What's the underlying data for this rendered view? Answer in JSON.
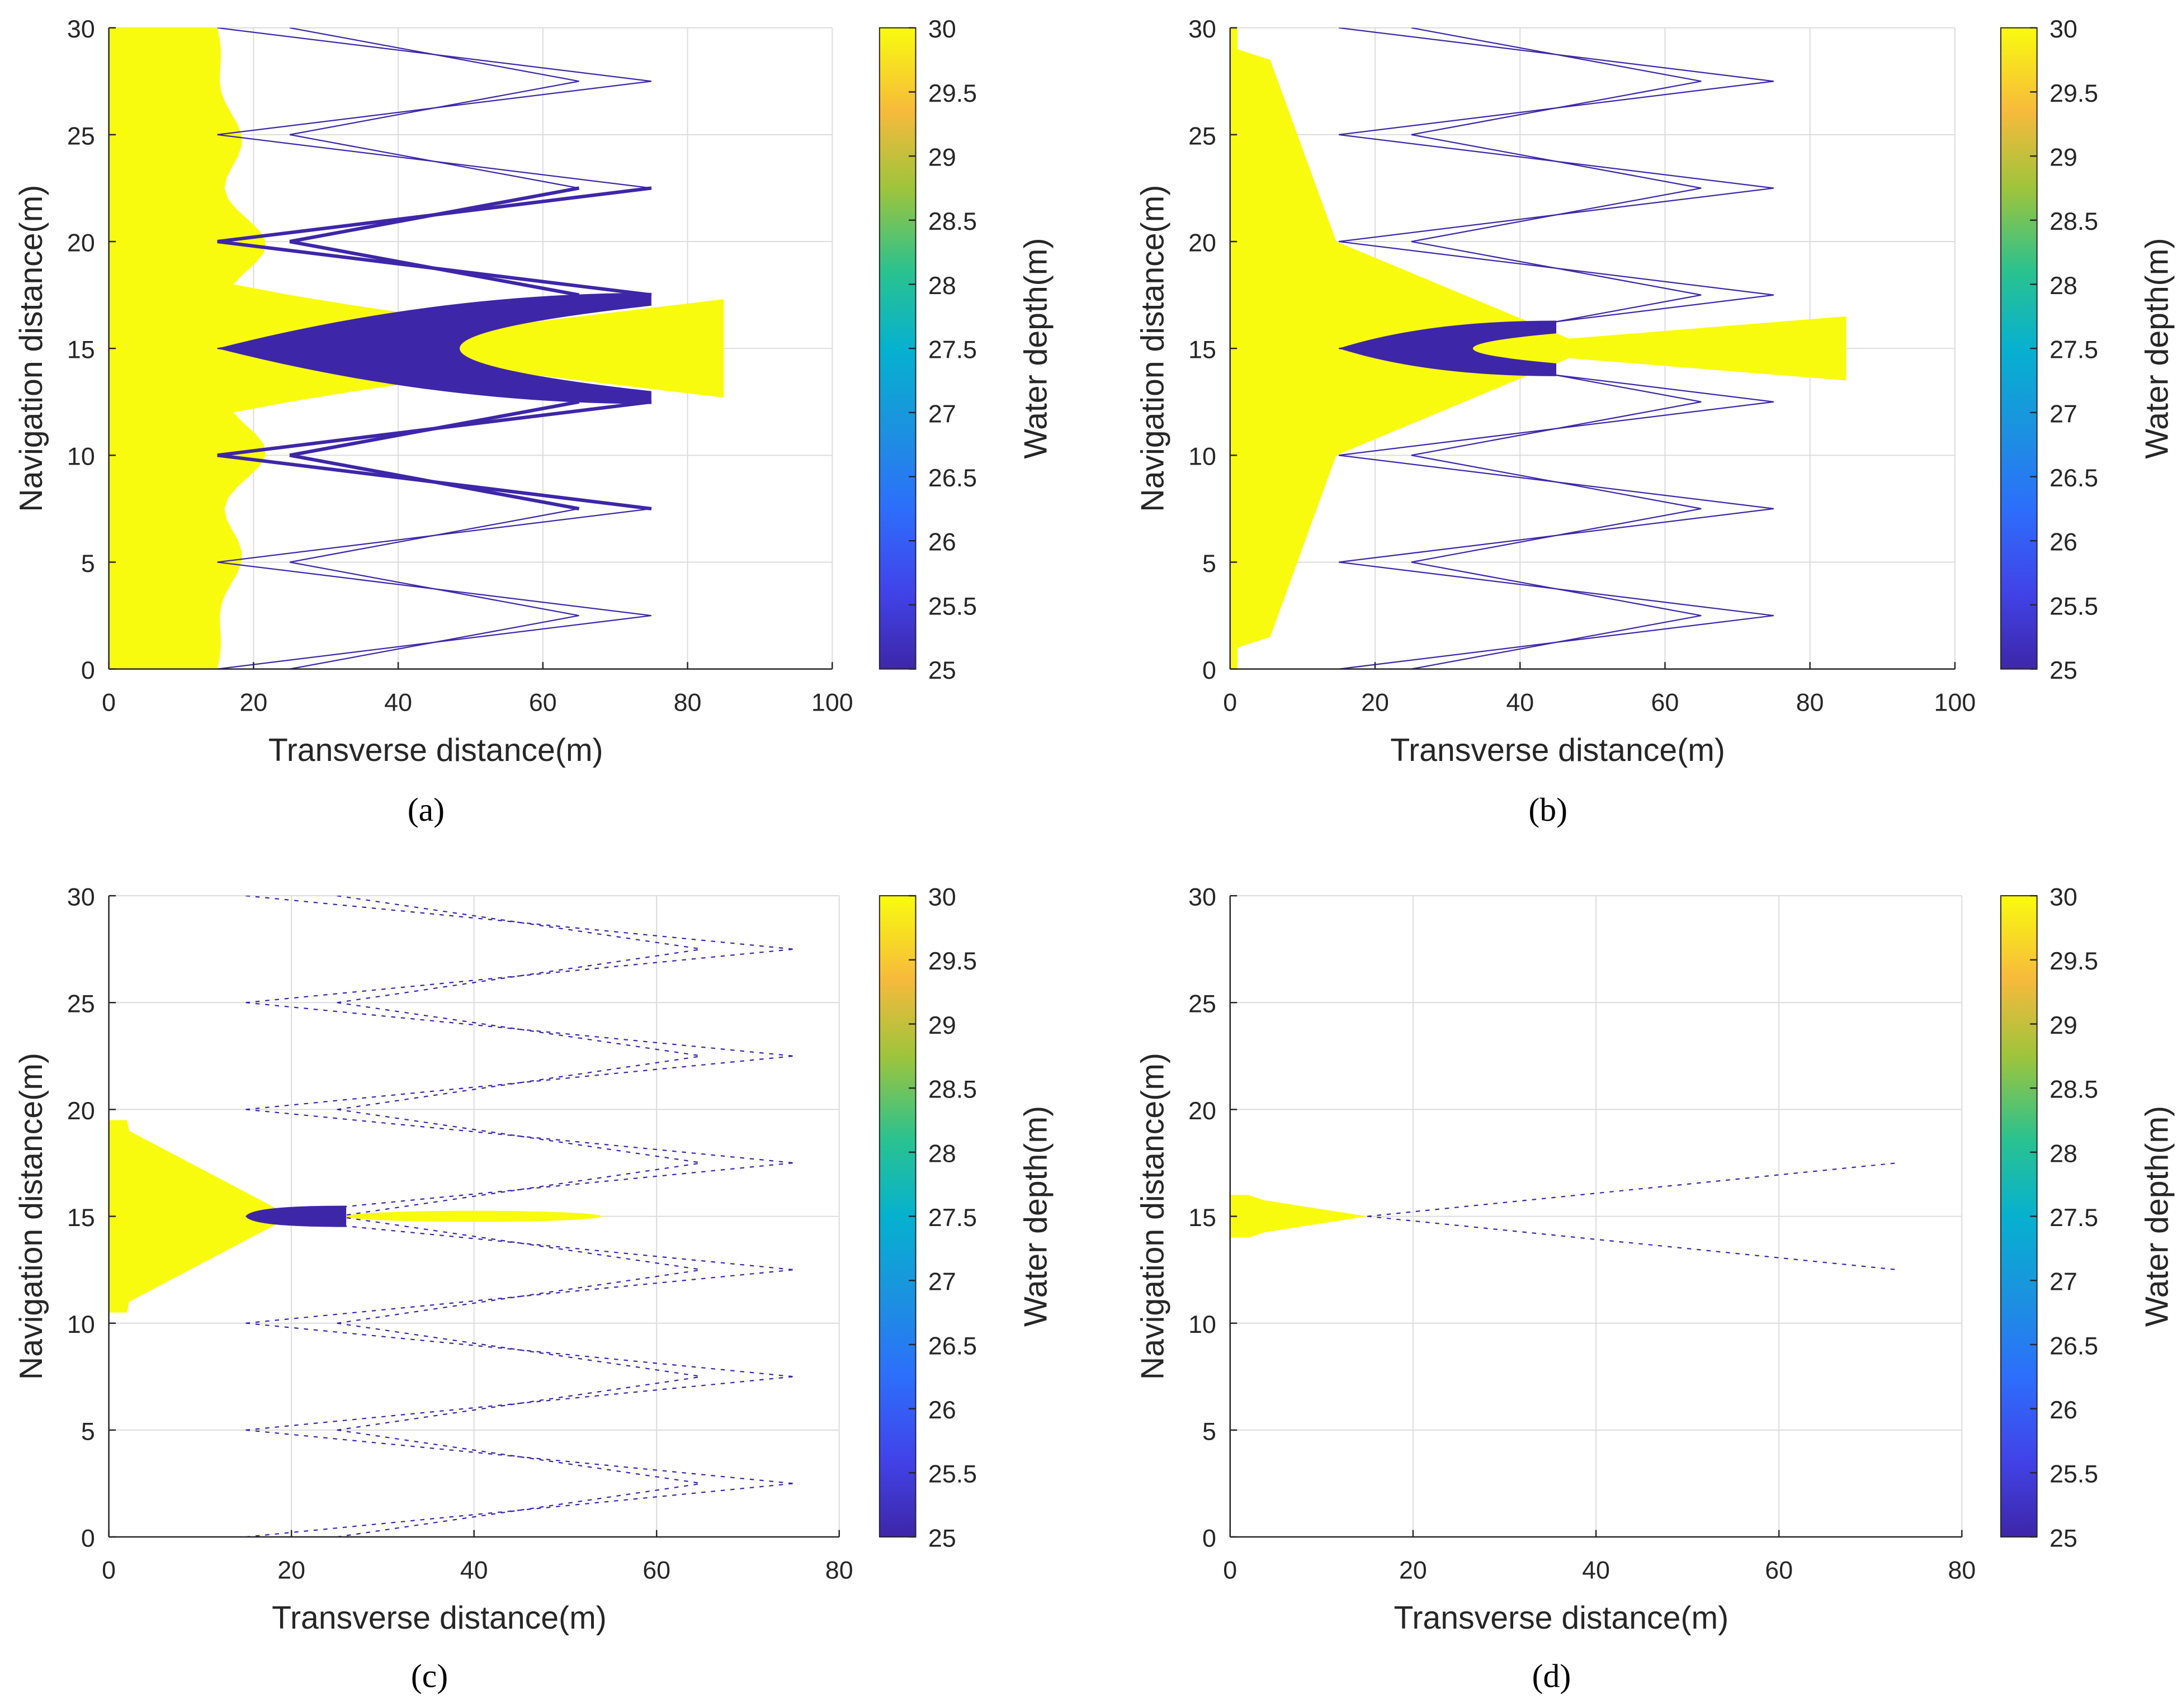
{
  "chart_data": [
    {
      "type": "heatmap",
      "caption": "(a)",
      "xlabel": "Transverse distance(m)",
      "ylabel": "Navigation distance(m)",
      "xlim": [
        0,
        100
      ],
      "ylim": [
        0,
        30
      ],
      "xticks": [
        "0",
        "20",
        "40",
        "60",
        "80",
        "100"
      ],
      "yticks": [
        "0",
        "5",
        "10",
        "15",
        "20",
        "25",
        "30"
      ],
      "colorbar": {
        "label": "Water depth(m)",
        "range": [
          25,
          30
        ],
        "ticks": [
          "25",
          "25.5",
          "26",
          "26.5",
          "27",
          "27.5",
          "28",
          "28.5",
          "29",
          "29.5",
          "30"
        ]
      },
      "features": {
        "shallow_region_max_x": 85,
        "wake_tip_x": 75,
        "wake_period": 5,
        "core_band_x": [
          15,
          75
        ]
      }
    },
    {
      "type": "heatmap",
      "caption": "(b)",
      "xlabel": "Transverse distance(m)",
      "ylabel": "Navigation distance(m)",
      "xlim": [
        0,
        100
      ],
      "ylim": [
        0,
        30
      ],
      "xticks": [
        "0",
        "20",
        "40",
        "60",
        "80",
        "100"
      ],
      "yticks": [
        "0",
        "5",
        "10",
        "15",
        "20",
        "25",
        "30"
      ],
      "colorbar": {
        "label": "Water depth(m)",
        "range": [
          25,
          30
        ],
        "ticks": [
          "25",
          "25.5",
          "26",
          "26.5",
          "27",
          "27.5",
          "28",
          "28.5",
          "29",
          "29.5",
          "30"
        ]
      },
      "features": {
        "shallow_region_max_x": 85,
        "wake_tip_x": 75,
        "wake_period": 5,
        "core_band_x": [
          15,
          45
        ]
      }
    },
    {
      "type": "heatmap",
      "caption": "(c)",
      "xlabel": "Transverse distance(m)",
      "ylabel": "Navigation distance(m)",
      "xlim": [
        0,
        80
      ],
      "ylim": [
        0,
        30
      ],
      "xticks": [
        "0",
        "20",
        "40",
        "60",
        "80"
      ],
      "yticks": [
        "0",
        "5",
        "10",
        "15",
        "20",
        "25",
        "30"
      ],
      "colorbar": {
        "label": "Water depth(m)",
        "range": [
          25,
          30
        ],
        "ticks": [
          "25",
          "25.5",
          "26",
          "26.5",
          "27",
          "27.5",
          "28",
          "28.5",
          "29",
          "29.5",
          "30"
        ]
      },
      "features": {
        "shallow_region_max_x": 54,
        "wake_tip_x": 75,
        "wake_period": 5,
        "core_band_x": [
          16,
          26
        ]
      }
    },
    {
      "type": "heatmap",
      "caption": "(d)",
      "xlabel": "Transverse distance(m)",
      "ylabel": "Navigation distance(m)",
      "xlim": [
        0,
        80
      ],
      "ylim": [
        0,
        30
      ],
      "xticks": [
        "0",
        "20",
        "40",
        "60",
        "80"
      ],
      "yticks": [
        "0",
        "5",
        "10",
        "15",
        "20",
        "25",
        "30"
      ],
      "colorbar": {
        "label": "Water depth(m)",
        "range": [
          25,
          30
        ],
        "ticks": [
          "25",
          "25.5",
          "26",
          "26.5",
          "27",
          "27.5",
          "28",
          "28.5",
          "29",
          "29.5",
          "30"
        ]
      },
      "features": {
        "shallow_region_max_x": 15,
        "wake_tip_x": 73,
        "wake_period": 5,
        "core_band_x": [
          15,
          16
        ]
      }
    }
  ],
  "colors": {
    "shallow": "#f9fb0e",
    "deep": "#3e26a8",
    "grid": "#dcdcdc",
    "axis": "#262626"
  }
}
